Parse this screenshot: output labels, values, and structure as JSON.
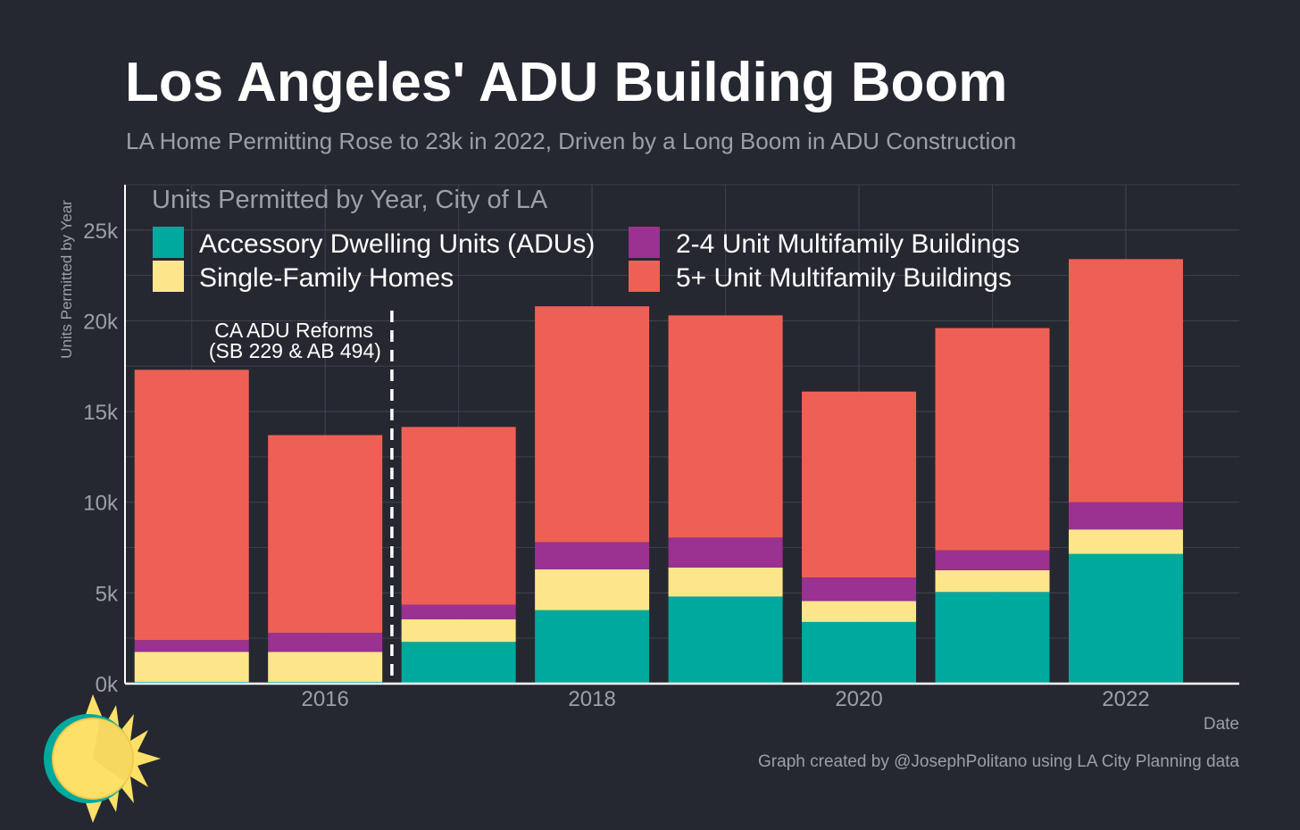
{
  "colors": {
    "background": "#252830",
    "grid": "#3c404a",
    "axis": "#ffffff",
    "adu": "#00a99d",
    "single_family": "#fde68a",
    "multi_2_4": "#9b3191",
    "multi_5_plus": "#ee6055"
  },
  "chart_data": {
    "type": "bar",
    "stacked": true,
    "title": "Los Angeles' ADU Building Boom",
    "subtitle": "LA Home Permitting Rose to 23k in 2022, Driven by a Long Boom in ADU Construction",
    "legend_title": "Units Permitted by Year, City of LA",
    "xlabel": "Date",
    "ylabel": "Units Permitted by Year",
    "x": [
      2015,
      2016,
      2017,
      2018,
      2019,
      2020,
      2021,
      2022
    ],
    "x_ticks": [
      2016,
      2018,
      2020,
      2022
    ],
    "x_tick_labels": [
      "2016",
      "2018",
      "2020",
      "2022"
    ],
    "ylim": [
      0,
      27500
    ],
    "y_ticks": [
      0,
      5000,
      10000,
      15000,
      20000,
      25000
    ],
    "y_tick_labels": [
      "0k",
      "5k",
      "10k",
      "15k",
      "20k",
      "25k"
    ],
    "grid": true,
    "legend_position": "top-left",
    "series": [
      {
        "name": "Accessory Dwelling Units (ADUs)",
        "color": "#00a99d",
        "values": [
          100,
          100,
          2300,
          4050,
          4800,
          3400,
          5050,
          7150
        ]
      },
      {
        "name": "Single-Family Homes",
        "color": "#fde68a",
        "values": [
          1650,
          1650,
          1250,
          2250,
          1600,
          1150,
          1200,
          1350
        ]
      },
      {
        "name": "2-4 Unit Multifamily Buildings",
        "color": "#9b3191",
        "values": [
          650,
          1050,
          800,
          1500,
          1650,
          1300,
          1100,
          1500
        ]
      },
      {
        "name": "5+ Unit Multifamily Buildings",
        "color": "#ee6055",
        "values": [
          14900,
          10900,
          9800,
          13000,
          12250,
          10250,
          12250,
          13400
        ]
      }
    ],
    "annotation": {
      "x": 2016.5,
      "lines": [
        "CA ADU Reforms",
        "(SB 229 & AB 494)"
      ]
    }
  },
  "caption": "Graph created by @JosephPolitano using LA City Planning data",
  "logo": {
    "name": "sun-logo"
  }
}
